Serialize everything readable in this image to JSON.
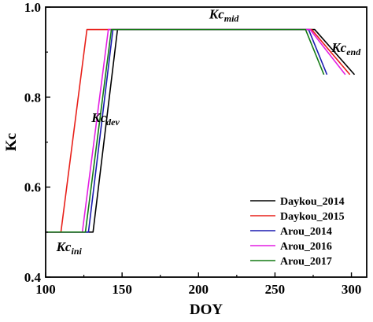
{
  "chart_data": {
    "type": "line",
    "xlabel": "DOY",
    "ylabel": "Kc",
    "xlim": [
      100,
      310
    ],
    "ylim": [
      0.4,
      1.0
    ],
    "xticks": [
      100,
      150,
      200,
      250,
      300
    ],
    "yticks": [
      0.4,
      0.6,
      0.8,
      1.0
    ],
    "x_tick_labels": [
      "100",
      "150",
      "200",
      "250",
      "300"
    ],
    "y_tick_labels": [
      "0.4",
      "0.6",
      "0.8",
      "1.0"
    ],
    "grid": false,
    "legend_position": "bottom-right",
    "annotations": [
      {
        "base": "Kc",
        "sub": "mid",
        "x": 207,
        "y": 0.975
      },
      {
        "base": "Kc",
        "sub": "end",
        "x": 287,
        "y": 0.9
      },
      {
        "base": "Kc",
        "sub": "dev",
        "x": 130,
        "y": 0.745
      },
      {
        "base": "Kc",
        "sub": "ini",
        "x": 107,
        "y": 0.458
      }
    ],
    "series": [
      {
        "name": "Daykou_2014",
        "color": "#000000",
        "x": [
          100,
          131,
          147,
          276,
          302
        ],
        "y": [
          0.5,
          0.5,
          0.95,
          0.95,
          0.85
        ]
      },
      {
        "name": "Daykou_2015",
        "color": "#e8201a",
        "x": [
          100,
          110,
          127,
          274,
          299
        ],
        "y": [
          0.5,
          0.5,
          0.95,
          0.95,
          0.85
        ]
      },
      {
        "name": "Arou_2014",
        "color": "#1a1ab0",
        "x": [
          100,
          128,
          144,
          272,
          284
        ],
        "y": [
          0.5,
          0.5,
          0.95,
          0.95,
          0.85
        ]
      },
      {
        "name": "Arou_2016",
        "color": "#e31ee3",
        "x": [
          100,
          124,
          141,
          273,
          296
        ],
        "y": [
          0.5,
          0.5,
          0.95,
          0.95,
          0.85
        ]
      },
      {
        "name": "Arou_2017",
        "color": "#137a13",
        "x": [
          100,
          126,
          143,
          270,
          282
        ],
        "y": [
          0.5,
          0.5,
          0.95,
          0.95,
          0.85
        ]
      }
    ]
  }
}
